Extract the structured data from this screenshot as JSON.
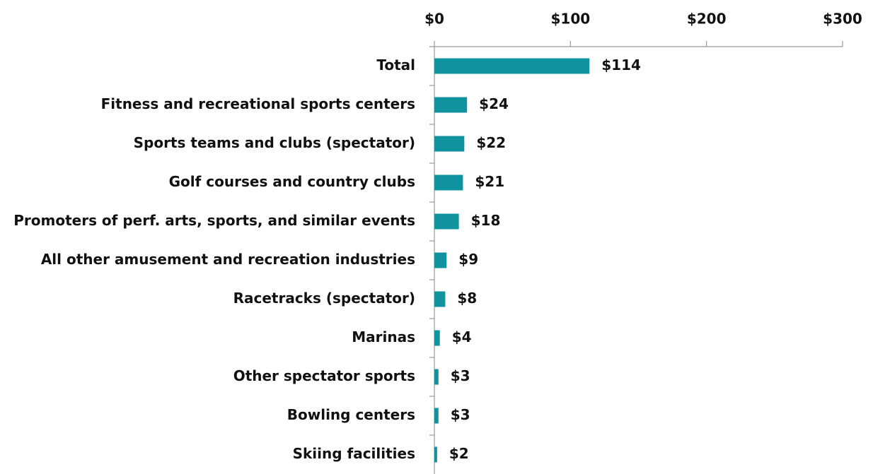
{
  "chart_data": {
    "type": "bar",
    "orientation": "horizontal",
    "categories": [
      "Total",
      "Fitness and recreational sports centers",
      "Sports teams and clubs (spectator)",
      "Golf courses and country clubs",
      "Promoters of perf. arts, sports, and similar events",
      "All other amusement and recreation industries",
      "Racetracks (spectator)",
      "Marinas",
      "Other spectator sports",
      "Bowling centers",
      "Skiing facilities"
    ],
    "values": [
      114,
      24,
      22,
      21,
      18,
      9,
      8,
      4,
      3,
      3,
      2
    ],
    "value_labels": [
      "$114",
      "$24",
      "$22",
      "$21",
      "$18",
      "$9",
      "$8",
      "$4",
      "$3",
      "$3",
      "$2"
    ],
    "color": "#11939f",
    "xlim": [
      0,
      300
    ],
    "xticks": [
      {
        "value": 0,
        "label": "$0"
      },
      {
        "value": 100,
        "label": "$100"
      },
      {
        "value": 200,
        "label": "$200"
      },
      {
        "value": 300,
        "label": "$300"
      }
    ],
    "grid": false
  }
}
